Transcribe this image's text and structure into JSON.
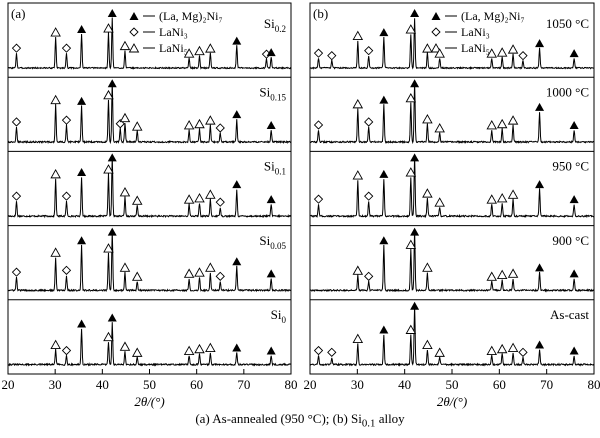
{
  "caption": {
    "part1": "(a) As-annealed (950 °C); (b) Si",
    "sub": "0.1",
    "part2": " alloy"
  },
  "chart_data": [
    {
      "type": "line",
      "panel_label": "(a)",
      "xlabel": "2θ/(°)",
      "xlim": [
        20,
        80
      ],
      "xticks": [
        20,
        30,
        40,
        50,
        60,
        70,
        80
      ],
      "legend": [
        {
          "symbol": "filled-triangle",
          "label": "(La, Mg)₂Ni₇"
        },
        {
          "symbol": "diamond",
          "label": "LaNi₃"
        },
        {
          "symbol": "open-triangle",
          "label": "LaNi₅"
        }
      ],
      "legend_position": "top-right",
      "series": [
        {
          "name": "Si0.2",
          "label_base": "Si",
          "label_sub": "0.2",
          "peaks": [
            [
              21.8,
              0.3,
              "diamond"
            ],
            [
              30.1,
              0.62,
              "open-triangle"
            ],
            [
              32.4,
              0.3,
              "diamond"
            ],
            [
              35.6,
              0.68,
              "filled-triangle"
            ],
            [
              41.3,
              0.7,
              "open-triangle"
            ],
            [
              42.1,
              1.0,
              "filled-triangle"
            ],
            [
              44.8,
              0.35,
              "open-triangle"
            ],
            [
              58.4,
              0.2,
              "open-triangle"
            ],
            [
              60.6,
              0.25,
              "open-triangle"
            ],
            [
              62.9,
              0.3,
              "open-triangle"
            ],
            [
              68.5,
              0.45,
              "filled-triangle"
            ],
            [
              68.8,
              0.0,
              "diamond"
            ],
            [
              74.8,
              0.18,
              "diamond"
            ],
            [
              75.8,
              0.22,
              "filled-triangle"
            ]
          ]
        },
        {
          "name": "Si0.15",
          "label_base": "Si",
          "label_sub": "0.15",
          "peaks": [
            [
              21.8,
              0.25,
              "diamond"
            ],
            [
              30.1,
              0.62,
              "open-triangle"
            ],
            [
              32.4,
              0.28,
              "diamond"
            ],
            [
              35.6,
              0.6,
              "filled-triangle"
            ],
            [
              41.3,
              0.7,
              "open-triangle"
            ],
            [
              42.1,
              1.0,
              "filled-triangle"
            ],
            [
              43.8,
              0.22,
              "diamond"
            ],
            [
              44.8,
              0.32,
              "open-triangle"
            ],
            [
              47.4,
              0.18,
              "open-triangle"
            ],
            [
              58.4,
              0.2,
              "open-triangle"
            ],
            [
              60.6,
              0.22,
              "open-triangle"
            ],
            [
              62.9,
              0.28,
              "open-triangle"
            ],
            [
              65.0,
              0.15,
              "diamond"
            ],
            [
              68.5,
              0.38,
              "filled-triangle"
            ],
            [
              75.8,
              0.2,
              "filled-triangle"
            ]
          ]
        },
        {
          "name": "Si0.1",
          "label_base": "Si",
          "label_sub": "0.1",
          "peaks": [
            [
              21.8,
              0.25,
              "diamond"
            ],
            [
              30.1,
              0.62,
              "open-triangle"
            ],
            [
              32.4,
              0.25,
              "diamond"
            ],
            [
              35.6,
              0.65,
              "filled-triangle"
            ],
            [
              41.3,
              0.7,
              "open-triangle"
            ],
            [
              42.1,
              1.0,
              "filled-triangle"
            ],
            [
              44.8,
              0.32,
              "open-triangle"
            ],
            [
              47.4,
              0.18,
              "open-triangle"
            ],
            [
              58.4,
              0.2,
              "open-triangle"
            ],
            [
              60.6,
              0.22,
              "open-triangle"
            ],
            [
              62.9,
              0.28,
              "open-triangle"
            ],
            [
              65.0,
              0.15,
              "diamond"
            ],
            [
              68.5,
              0.45,
              "filled-triangle"
            ],
            [
              75.8,
              0.2,
              "filled-triangle"
            ]
          ]
        },
        {
          "name": "Si0.05",
          "label_base": "Si",
          "label_sub": "0.05",
          "peaks": [
            [
              21.8,
              0.22,
              "diamond"
            ],
            [
              30.1,
              0.55,
              "open-triangle"
            ],
            [
              32.4,
              0.25,
              "diamond"
            ],
            [
              35.6,
              0.75,
              "filled-triangle"
            ],
            [
              41.3,
              0.62,
              "open-triangle"
            ],
            [
              42.1,
              1.0,
              "filled-triangle"
            ],
            [
              44.8,
              0.3,
              "open-triangle"
            ],
            [
              47.4,
              0.15,
              "open-triangle"
            ],
            [
              58.4,
              0.2,
              "open-triangle"
            ],
            [
              60.6,
              0.22,
              "open-triangle"
            ],
            [
              62.9,
              0.3,
              "open-triangle"
            ],
            [
              65.0,
              0.15,
              "diamond"
            ],
            [
              68.5,
              0.4,
              "filled-triangle"
            ],
            [
              75.8,
              0.2,
              "filled-triangle"
            ]
          ]
        },
        {
          "name": "Si0",
          "label_base": "Si",
          "label_sub": "0",
          "peaks": [
            [
              30.1,
              0.25,
              "open-triangle"
            ],
            [
              32.4,
              0.15,
              "diamond"
            ],
            [
              35.6,
              0.6,
              "filled-triangle"
            ],
            [
              41.3,
              0.38,
              "open-triangle"
            ],
            [
              42.1,
              0.7,
              "filled-triangle"
            ],
            [
              44.8,
              0.22,
              "open-triangle"
            ],
            [
              47.4,
              0.12,
              "open-triangle"
            ],
            [
              58.4,
              0.15,
              "open-triangle"
            ],
            [
              60.6,
              0.18,
              "open-triangle"
            ],
            [
              62.9,
              0.2,
              "open-triangle"
            ],
            [
              68.5,
              0.2,
              "filled-triangle"
            ],
            [
              75.8,
              0.15,
              "filled-triangle"
            ]
          ]
        }
      ]
    },
    {
      "type": "line",
      "panel_label": "(b)",
      "xlabel": "2θ/(°)",
      "xlim": [
        20,
        80
      ],
      "xticks": [
        20,
        30,
        40,
        50,
        60,
        70,
        80
      ],
      "legend": [
        {
          "symbol": "filled-triangle",
          "label": "(La, Mg)₂Ni₇"
        },
        {
          "symbol": "diamond",
          "label": "LaNi₃"
        },
        {
          "symbol": "open-triangle",
          "label": "LaNi₅"
        }
      ],
      "legend_position": "top-right",
      "series": [
        {
          "name": "1050 °C",
          "label_base": "1050 °C",
          "label_sub": "",
          "peaks": [
            [
              21.8,
              0.2,
              "diamond"
            ],
            [
              24.6,
              0.15,
              "diamond"
            ],
            [
              30.1,
              0.55,
              "open-triangle"
            ],
            [
              32.4,
              0.25,
              "diamond"
            ],
            [
              35.6,
              0.62,
              "filled-triangle"
            ],
            [
              41.3,
              0.68,
              "open-triangle"
            ],
            [
              42.1,
              1.0,
              "filled-triangle"
            ],
            [
              44.8,
              0.3,
              "open-triangle"
            ],
            [
              47.4,
              0.2,
              "open-triangle"
            ],
            [
              58.4,
              0.2,
              "open-triangle"
            ],
            [
              60.6,
              0.22,
              "open-triangle"
            ],
            [
              62.9,
              0.28,
              "open-triangle"
            ],
            [
              65.0,
              0.15,
              "diamond"
            ],
            [
              68.5,
              0.4,
              "filled-triangle"
            ],
            [
              75.8,
              0.2,
              "filled-triangle"
            ]
          ]
        },
        {
          "name": "1000 °C",
          "label_base": "1000 °C",
          "label_sub": "",
          "peaks": [
            [
              21.8,
              0.2,
              "diamond"
            ],
            [
              30.1,
              0.55,
              "open-triangle"
            ],
            [
              32.4,
              0.25,
              "diamond"
            ],
            [
              35.6,
              0.62,
              "filled-triangle"
            ],
            [
              41.3,
              0.65,
              "open-triangle"
            ],
            [
              42.1,
              1.0,
              "filled-triangle"
            ],
            [
              44.8,
              0.3,
              "open-triangle"
            ],
            [
              47.4,
              0.15,
              "open-triangle"
            ],
            [
              58.4,
              0.2,
              "open-triangle"
            ],
            [
              60.6,
              0.22,
              "open-triangle"
            ],
            [
              62.9,
              0.28,
              "open-triangle"
            ],
            [
              68.5,
              0.5,
              "filled-triangle"
            ],
            [
              75.8,
              0.2,
              "filled-triangle"
            ]
          ]
        },
        {
          "name": "950 °C",
          "label_base": "950 °C",
          "label_sub": "",
          "peaks": [
            [
              21.8,
              0.2,
              "diamond"
            ],
            [
              30.1,
              0.6,
              "open-triangle"
            ],
            [
              32.4,
              0.25,
              "diamond"
            ],
            [
              35.6,
              0.62,
              "filled-triangle"
            ],
            [
              41.3,
              0.65,
              "open-triangle"
            ],
            [
              42.1,
              1.0,
              "filled-triangle"
            ],
            [
              44.8,
              0.3,
              "open-triangle"
            ],
            [
              47.4,
              0.15,
              "open-triangle"
            ],
            [
              58.4,
              0.2,
              "open-triangle"
            ],
            [
              60.6,
              0.22,
              "open-triangle"
            ],
            [
              62.9,
              0.28,
              "open-triangle"
            ],
            [
              68.5,
              0.45,
              "filled-triangle"
            ],
            [
              75.8,
              0.2,
              "filled-triangle"
            ]
          ]
        },
        {
          "name": "900 °C",
          "label_base": "900 °C",
          "label_sub": "",
          "peaks": [
            [
              30.1,
              0.25,
              "open-triangle"
            ],
            [
              32.4,
              0.15,
              "diamond"
            ],
            [
              35.6,
              0.75,
              "filled-triangle"
            ],
            [
              41.3,
              0.68,
              "open-triangle"
            ],
            [
              42.1,
              1.0,
              "filled-triangle"
            ],
            [
              44.8,
              0.3,
              "open-triangle"
            ],
            [
              58.4,
              0.15,
              "open-triangle"
            ],
            [
              60.6,
              0.18,
              "open-triangle"
            ],
            [
              62.9,
              0.2,
              "open-triangle"
            ],
            [
              68.5,
              0.3,
              "filled-triangle"
            ],
            [
              75.8,
              0.2,
              "filled-triangle"
            ]
          ]
        },
        {
          "name": "As-cast",
          "label_base": "As-cast",
          "label_sub": "",
          "peaks": [
            [
              21.8,
              0.15,
              "diamond"
            ],
            [
              24.6,
              0.12,
              "diamond"
            ],
            [
              30.1,
              0.35,
              "open-triangle"
            ],
            [
              35.6,
              0.5,
              "filled-triangle"
            ],
            [
              41.3,
              0.5,
              "open-triangle"
            ],
            [
              42.1,
              1.0,
              "filled-triangle"
            ],
            [
              44.8,
              0.25,
              "open-triangle"
            ],
            [
              47.4,
              0.12,
              "open-triangle"
            ],
            [
              58.4,
              0.15,
              "open-triangle"
            ],
            [
              60.6,
              0.18,
              "open-triangle"
            ],
            [
              62.9,
              0.2,
              "open-triangle"
            ],
            [
              65.0,
              0.12,
              "diamond"
            ],
            [
              68.5,
              0.25,
              "filled-triangle"
            ],
            [
              75.8,
              0.15,
              "filled-triangle"
            ]
          ]
        }
      ]
    }
  ]
}
